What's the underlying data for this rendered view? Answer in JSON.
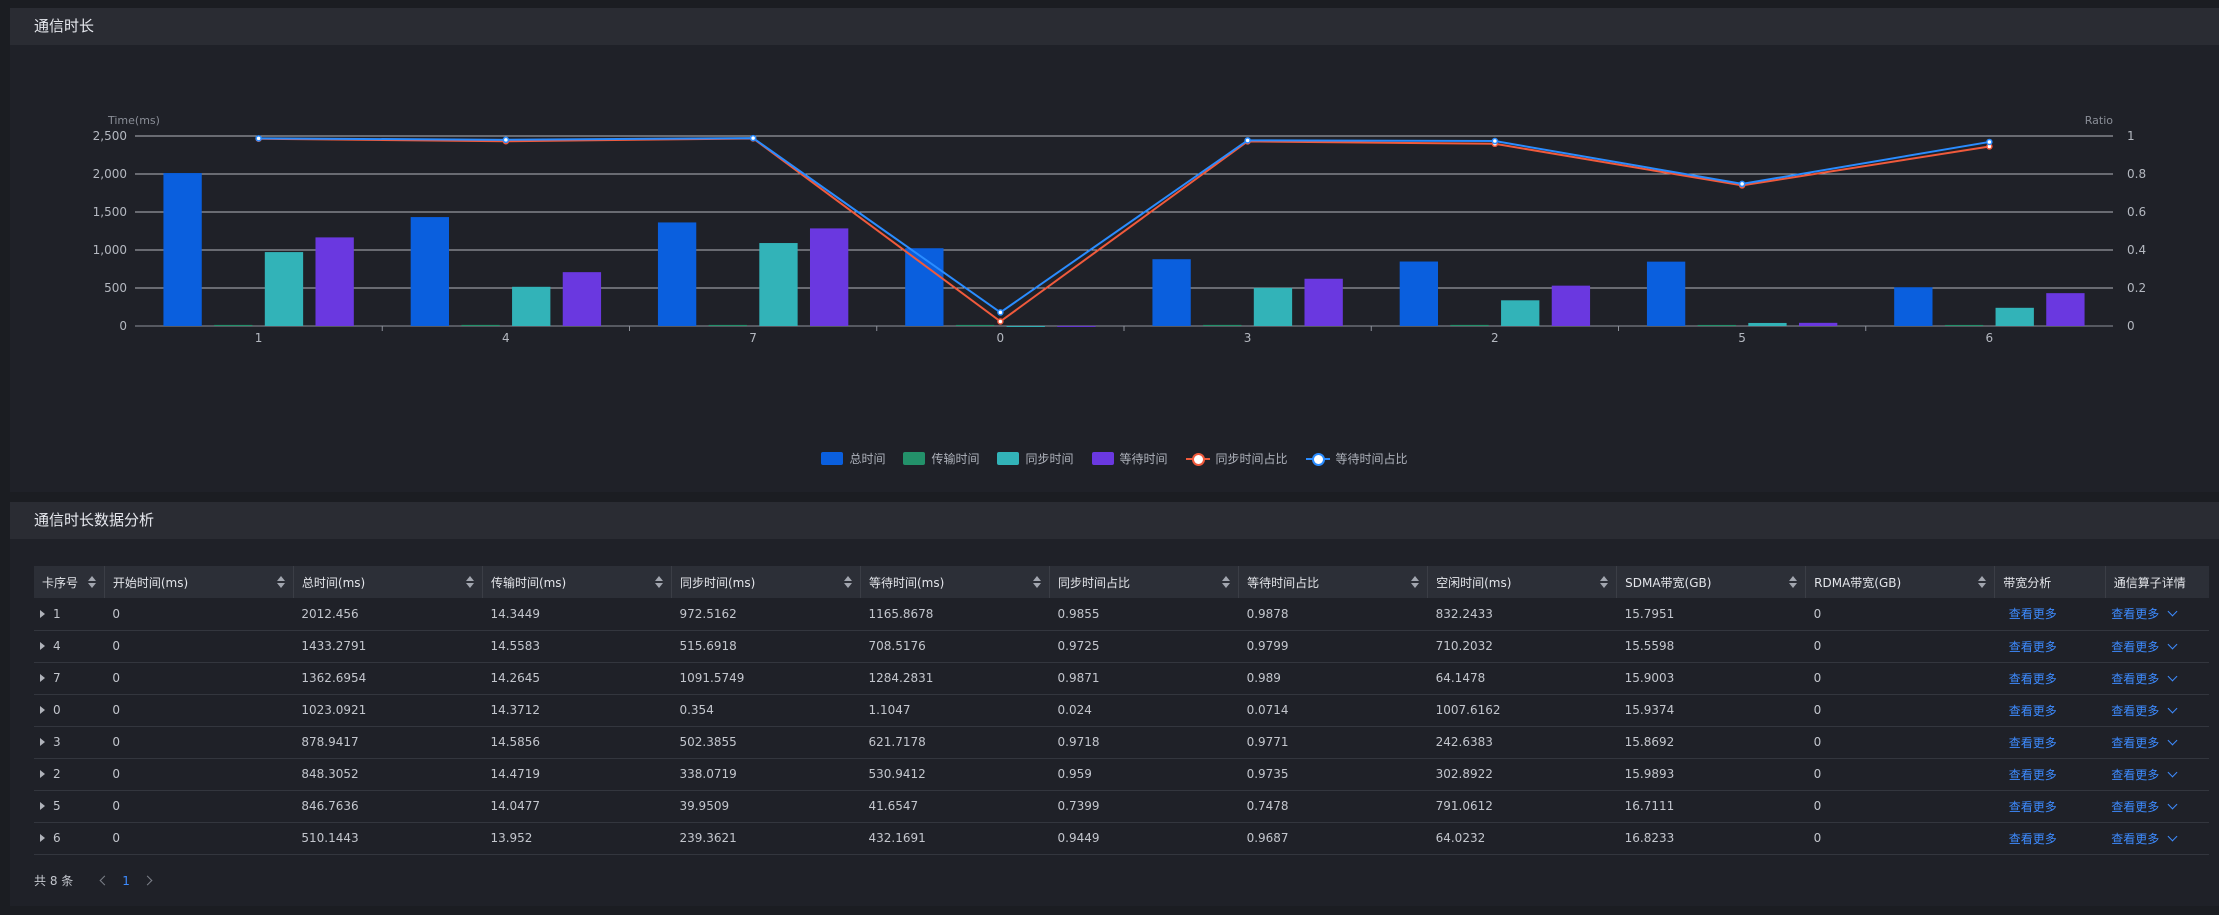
{
  "chart_panel": {
    "title": "通信时长"
  },
  "table_panel": {
    "title": "通信时长数据分析"
  },
  "chart_data": {
    "type": "bar",
    "categories": [
      "1",
      "4",
      "7",
      "0",
      "3",
      "2",
      "5",
      "6"
    ],
    "ylabel": "Time(ms)",
    "y2label": "Ratio",
    "ylim": [
      0,
      2500
    ],
    "y2lim": [
      0,
      1
    ],
    "yticks": [
      "0",
      "500",
      "1,000",
      "1,500",
      "2,000",
      "2,500"
    ],
    "y2ticks": [
      "0",
      "0.2",
      "0.4",
      "0.6",
      "0.8",
      "1"
    ],
    "grid": true,
    "legend_position": "bottom",
    "bar_series": [
      {
        "name": "总时间",
        "color": "#0a5fde",
        "values": [
          2012.456,
          1433.2791,
          1362.6954,
          1023.0921,
          878.9417,
          848.3052,
          846.7636,
          510.1443
        ]
      },
      {
        "name": "传输时间",
        "color": "#23916a",
        "values": [
          14.3449,
          14.5583,
          14.2645,
          14.3712,
          14.5856,
          14.4719,
          14.0477,
          13.952
        ]
      },
      {
        "name": "同步时间",
        "color": "#32b3b8",
        "values": [
          972.5162,
          515.6918,
          1091.5749,
          0.354,
          502.3855,
          338.0719,
          39.9509,
          239.3621
        ]
      },
      {
        "name": "等待时间",
        "color": "#6a38e0",
        "values": [
          1165.8678,
          708.5176,
          1284.2831,
          1.1047,
          621.7178,
          530.9412,
          41.6547,
          432.1691
        ]
      }
    ],
    "line_series": [
      {
        "name": "同步时间占比",
        "color": "#f05a3c",
        "values": [
          0.9855,
          0.9725,
          0.9871,
          0.024,
          0.9718,
          0.959,
          0.7399,
          0.9449
        ]
      },
      {
        "name": "等待时间占比",
        "color": "#2a8cff",
        "values": [
          0.9878,
          0.9799,
          0.989,
          0.0714,
          0.9771,
          0.9735,
          0.7478,
          0.9687
        ]
      }
    ]
  },
  "table": {
    "columns": [
      "卡序号",
      "开始时间(ms)",
      "总时间(ms)",
      "传输时间(ms)",
      "同步时间(ms)",
      "等待时间(ms)",
      "同步时间占比",
      "等待时间占比",
      "空闲时间(ms)",
      "SDMA带宽(GB)",
      "RDMA带宽(GB)",
      "带宽分析",
      "通信算子详情"
    ],
    "rows": [
      [
        "1",
        "0",
        "2012.456",
        "14.3449",
        "972.5162",
        "1165.8678",
        "0.9855",
        "0.9878",
        "832.2433",
        "15.7951",
        "0"
      ],
      [
        "4",
        "0",
        "1433.2791",
        "14.5583",
        "515.6918",
        "708.5176",
        "0.9725",
        "0.9799",
        "710.2032",
        "15.5598",
        "0"
      ],
      [
        "7",
        "0",
        "1362.6954",
        "14.2645",
        "1091.5749",
        "1284.2831",
        "0.9871",
        "0.989",
        "64.1478",
        "15.9003",
        "0"
      ],
      [
        "0",
        "0",
        "1023.0921",
        "14.3712",
        "0.354",
        "1.1047",
        "0.024",
        "0.0714",
        "1007.6162",
        "15.9374",
        "0"
      ],
      [
        "3",
        "0",
        "878.9417",
        "14.5856",
        "502.3855",
        "621.7178",
        "0.9718",
        "0.9771",
        "242.6383",
        "15.8692",
        "0"
      ],
      [
        "2",
        "0",
        "848.3052",
        "14.4719",
        "338.0719",
        "530.9412",
        "0.959",
        "0.9735",
        "302.8922",
        "15.9893",
        "0"
      ],
      [
        "5",
        "0",
        "846.7636",
        "14.0477",
        "39.9509",
        "41.6547",
        "0.7399",
        "0.7478",
        "791.0612",
        "16.7111",
        "0"
      ],
      [
        "6",
        "0",
        "510.1443",
        "13.952",
        "239.3621",
        "432.1691",
        "0.9449",
        "0.9687",
        "64.0232",
        "16.8233",
        "0"
      ]
    ],
    "view_more_label": "查看更多"
  },
  "pagination": {
    "total_label": "共 8 条",
    "current_page": "1"
  }
}
